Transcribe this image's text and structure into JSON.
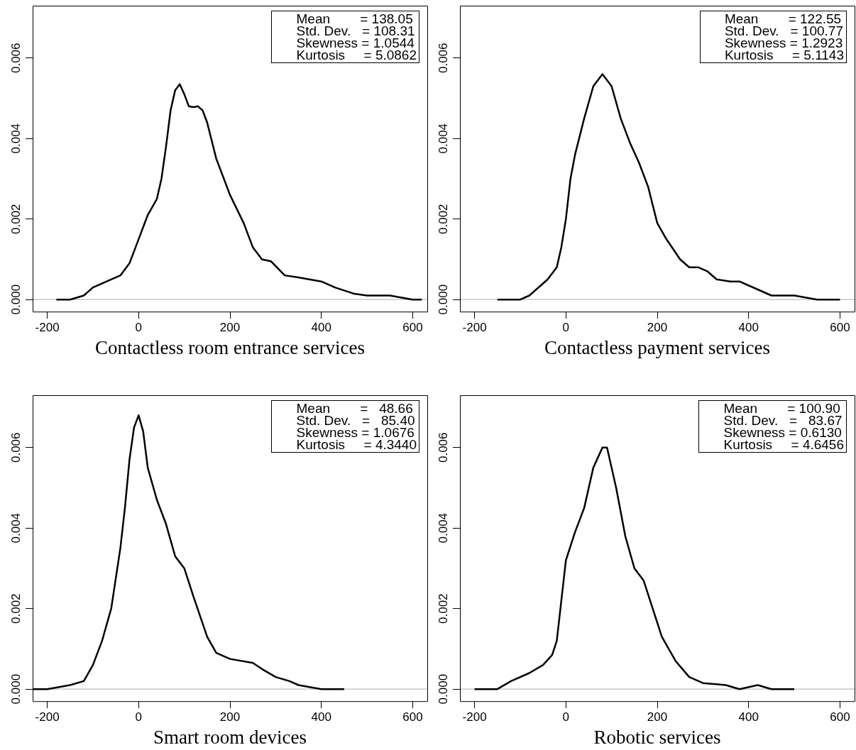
{
  "chart_data": [
    {
      "type": "line",
      "xlabel": "Contactless room entrance services",
      "annotations": [
        "Mean        = 138.05",
        "Std. Dev.   = 108.31",
        "Skewness = 1.0544",
        "Kurtosis     = 5.0862"
      ],
      "xlim": [
        -232,
        632
      ],
      "xticks": [
        -200,
        0,
        200,
        400,
        600
      ],
      "ylim": [
        -0.0003,
        0.0073
      ],
      "yticks": [
        {
          "value": 0,
          "label": "0.000"
        },
        {
          "value": 0.002,
          "label": "0.002"
        },
        {
          "value": 0.004,
          "label": "0.004"
        },
        {
          "value": 0.006,
          "label": "0.006"
        }
      ],
      "ref_lines": [
        {
          "axis": "y",
          "value": 0,
          "color": "#bebebe"
        }
      ],
      "series": [
        {
          "color": "#000000",
          "x": [
            -180,
            -150,
            -120,
            -100,
            -70,
            -40,
            -20,
            0,
            20,
            40,
            50,
            60,
            70,
            80,
            90,
            100,
            110,
            120,
            130,
            140,
            150,
            170,
            200,
            230,
            250,
            270,
            290,
            320,
            350,
            400,
            430,
            470,
            500,
            550,
            600,
            620
          ],
          "values": [
            0,
            0,
            0.0001,
            0.0003,
            0.00045,
            0.0006,
            0.0009,
            0.0015,
            0.0021,
            0.0025,
            0.003,
            0.0038,
            0.0047,
            0.0052,
            0.00535,
            0.0051,
            0.0048,
            0.00478,
            0.0048,
            0.0047,
            0.0044,
            0.0035,
            0.0026,
            0.0019,
            0.0013,
            0.001,
            0.00095,
            0.0006,
            0.00055,
            0.00045,
            0.0003,
            0.00015,
            0.0001,
            0.0001,
            0,
            0
          ]
        }
      ]
    },
    {
      "type": "line",
      "xlabel": "Contactless payment services",
      "annotations": [
        "Mean        = 122.55",
        "Std. Dev.   = 100.77",
        "Skewness = 1.2923",
        "Kurtosis     = 5.1143"
      ],
      "xlim": [
        -232,
        632
      ],
      "xticks": [
        -200,
        0,
        200,
        400,
        600
      ],
      "ylim": [
        -0.0003,
        0.0073
      ],
      "yticks": [
        {
          "value": 0,
          "label": "0.000"
        },
        {
          "value": 0.002,
          "label": "0.002"
        },
        {
          "value": 0.004,
          "label": "0.004"
        },
        {
          "value": 0.006,
          "label": "0.006"
        }
      ],
      "ref_lines": [
        {
          "axis": "y",
          "value": 0,
          "color": "#bebebe"
        }
      ],
      "series": [
        {
          "color": "#000000",
          "x": [
            -150,
            -100,
            -80,
            -60,
            -40,
            -20,
            -10,
            0,
            10,
            20,
            40,
            60,
            80,
            100,
            120,
            140,
            160,
            180,
            200,
            220,
            250,
            270,
            290,
            310,
            330,
            360,
            380,
            420,
            450,
            500,
            550,
            600
          ],
          "values": [
            0,
            0,
            0.0001,
            0.0003,
            0.0005,
            0.0008,
            0.0013,
            0.002,
            0.003,
            0.0036,
            0.0045,
            0.0053,
            0.0056,
            0.0053,
            0.0045,
            0.0039,
            0.0034,
            0.0028,
            0.0019,
            0.0015,
            0.001,
            0.0008,
            0.0008,
            0.0007,
            0.0005,
            0.00045,
            0.00045,
            0.00025,
            0.0001,
            0.0001,
            0,
            0
          ]
        }
      ]
    },
    {
      "type": "line",
      "xlabel": "Smart room devices",
      "annotations": [
        "Mean        =   48.66",
        "Std. Dev.   =   85.40",
        "Skewness = 1.0676",
        "Kurtosis     = 4.3440"
      ],
      "xlim": [
        -232,
        632
      ],
      "xticks": [
        -200,
        0,
        200,
        400,
        600
      ],
      "ylim": [
        -0.0003,
        0.0073
      ],
      "yticks": [
        {
          "value": 0,
          "label": "0.000"
        },
        {
          "value": 0.002,
          "label": "0.002"
        },
        {
          "value": 0.004,
          "label": "0.004"
        },
        {
          "value": 0.006,
          "label": "0.006"
        }
      ],
      "ref_lines": [
        {
          "axis": "y",
          "value": 0,
          "color": "#bebebe"
        }
      ],
      "series": [
        {
          "color": "#000000",
          "x": [
            -232,
            -200,
            -150,
            -120,
            -100,
            -80,
            -60,
            -40,
            -30,
            -20,
            -10,
            0,
            10,
            20,
            40,
            60,
            80,
            100,
            120,
            150,
            170,
            200,
            250,
            270,
            300,
            330,
            350,
            400,
            450
          ],
          "values": [
            0,
            0,
            0.0001,
            0.0002,
            0.0006,
            0.0012,
            0.002,
            0.0035,
            0.0045,
            0.0057,
            0.0065,
            0.0068,
            0.0064,
            0.0055,
            0.0047,
            0.0041,
            0.0033,
            0.003,
            0.0023,
            0.0013,
            0.0009,
            0.00075,
            0.00065,
            0.0005,
            0.0003,
            0.0002,
            0.0001,
            0,
            0
          ]
        }
      ]
    },
    {
      "type": "line",
      "xlabel": "Robotic services",
      "annotations": [
        "Mean        = 100.90",
        "Std. Dev.   =   83.67",
        "Skewness = 0.6130",
        "Kurtosis     = 4.6456"
      ],
      "xlim": [
        -232,
        632
      ],
      "xticks": [
        -200,
        0,
        200,
        400,
        600
      ],
      "ylim": [
        -0.0003,
        0.0073
      ],
      "yticks": [
        {
          "value": 0,
          "label": "0.000"
        },
        {
          "value": 0.002,
          "label": "0.002"
        },
        {
          "value": 0.004,
          "label": "0.004"
        },
        {
          "value": 0.006,
          "label": "0.006"
        }
      ],
      "ref_lines": [
        {
          "axis": "y",
          "value": 0,
          "color": "#bebebe"
        }
      ],
      "series": [
        {
          "color": "#000000",
          "x": [
            -200,
            -150,
            -120,
            -80,
            -50,
            -30,
            -20,
            -10,
            0,
            20,
            40,
            60,
            80,
            90,
            110,
            130,
            150,
            170,
            190,
            210,
            240,
            270,
            300,
            350,
            380,
            420,
            450,
            500
          ],
          "values": [
            0,
            0,
            0.0002,
            0.0004,
            0.0006,
            0.00085,
            0.0012,
            0.0022,
            0.0032,
            0.0039,
            0.0045,
            0.0055,
            0.006,
            0.006,
            0.005,
            0.0038,
            0.003,
            0.0027,
            0.002,
            0.0013,
            0.0007,
            0.0003,
            0.00015,
            0.0001,
            0,
            0.0001,
            0,
            0
          ]
        }
      ]
    }
  ]
}
